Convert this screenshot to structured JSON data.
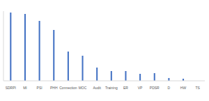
{
  "chart_data": {
    "type": "bar",
    "categories": [
      "SDRPI",
      "MI",
      "PSI",
      "PHH",
      "Connection",
      "MOC",
      "Audit",
      "Training",
      "ER",
      "VP",
      "PDSR",
      "D",
      "HW",
      "TS"
    ],
    "values": [
      98,
      96,
      86,
      73,
      42,
      36,
      19,
      14,
      14,
      10,
      11,
      4,
      3,
      0
    ],
    "color": "#4472c4",
    "ylim": [
      0,
      100
    ],
    "grid": false,
    "tick_labels": "x"
  }
}
